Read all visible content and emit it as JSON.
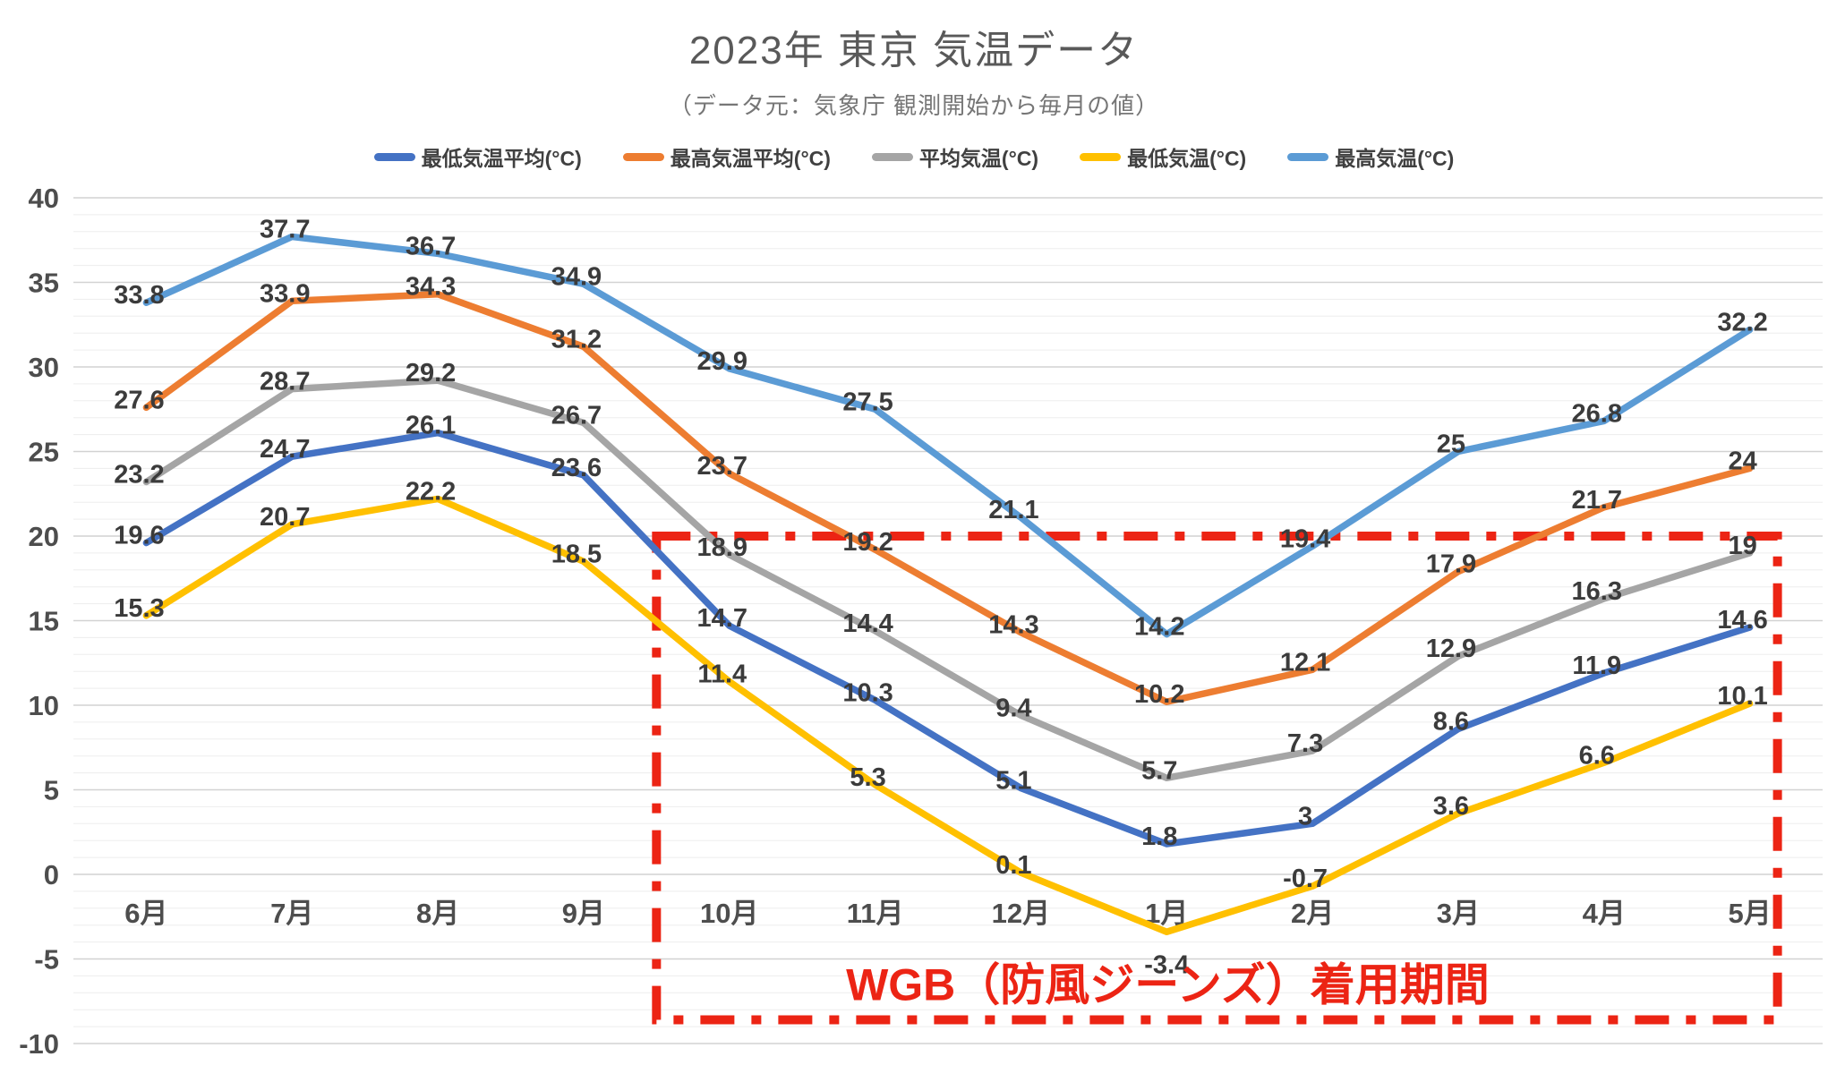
{
  "title": "2023年 東京 気温データ",
  "subtitle": "（データ元：気象庁 観測開始から毎月の値）",
  "chart_data": {
    "type": "line",
    "categories": [
      "6月",
      "7月",
      "8月",
      "9月",
      "10月",
      "11月",
      "12月",
      "1月",
      "2月",
      "3月",
      "4月",
      "5月"
    ],
    "series": [
      {
        "name": "最低気温平均(°C)",
        "color": "#4472C4",
        "values": [
          19.6,
          24.7,
          26.1,
          23.6,
          14.7,
          10.3,
          5.1,
          1.8,
          3,
          8.6,
          11.9,
          14.6
        ]
      },
      {
        "name": "最高気温平均(°C)",
        "color": "#ED7D31",
        "values": [
          27.6,
          33.9,
          34.3,
          31.2,
          23.7,
          19.2,
          14.3,
          10.2,
          12.1,
          17.9,
          21.7,
          24
        ]
      },
      {
        "name": "平均気温(°C)",
        "color": "#A5A5A5",
        "values": [
          23.2,
          28.7,
          29.2,
          26.7,
          18.9,
          14.4,
          9.4,
          5.7,
          7.3,
          12.9,
          16.3,
          19
        ]
      },
      {
        "name": "最低気温(°C)",
        "color": "#FFC000",
        "values": [
          15.3,
          20.7,
          22.2,
          18.5,
          11.4,
          5.3,
          0.1,
          -3.4,
          -0.7,
          3.6,
          6.6,
          10.1
        ]
      },
      {
        "name": "最高気温(°C)",
        "color": "#5B9BD5",
        "values": [
          33.8,
          37.7,
          36.7,
          34.9,
          29.9,
          27.5,
          21.1,
          14.2,
          19.4,
          25,
          26.8,
          32.2
        ]
      }
    ],
    "ylim": [
      -10,
      40
    ],
    "y_major_unit": 5,
    "y_minor_unit": 1,
    "grid": true,
    "legend_position": "top",
    "data_labels": true,
    "annotation": {
      "label": "WGB（防風ジーンズ）着用期間",
      "color": "#EC2414",
      "x_start_after": "9月",
      "x_end": "5月",
      "y_top": 20,
      "y_bottom": -8.6
    }
  }
}
